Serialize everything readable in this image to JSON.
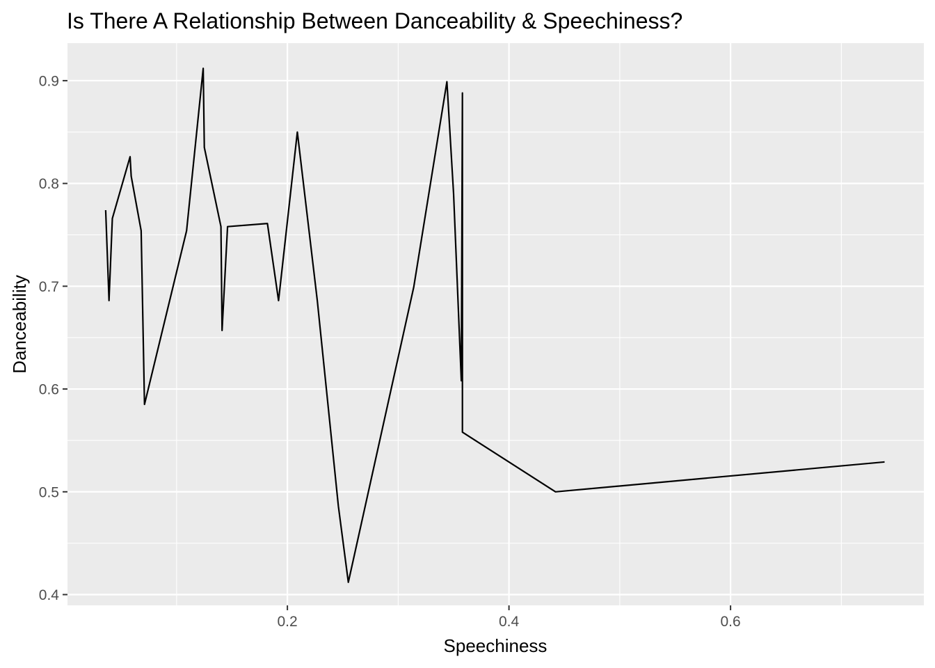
{
  "chart_data": {
    "type": "line",
    "title": "Is There A Relationship Between Danceability & Speechiness?",
    "xlabel": "Speechiness",
    "ylabel": "Danceability",
    "xlim": [
      0.0015,
      0.7745
    ],
    "ylim": [
      0.3895,
      0.9365
    ],
    "x_ticks": [
      0.2,
      0.4,
      0.6
    ],
    "x_tick_labels": [
      "0.2",
      "0.4",
      "0.6"
    ],
    "y_ticks": [
      0.4,
      0.5,
      0.6,
      0.7,
      0.8,
      0.9
    ],
    "y_tick_labels": [
      "0.4",
      "0.5",
      "0.6",
      "0.7",
      "0.8",
      "0.9"
    ],
    "grid": true,
    "background": "#EBEBEB",
    "grid_color": "#FFFFFF",
    "line_color": "#000000",
    "series": [
      {
        "x": [
          0.036,
          0.039,
          0.042,
          0.058,
          0.059,
          0.068,
          0.071,
          0.109,
          0.124,
          0.125,
          0.14,
          0.141,
          0.146,
          0.182,
          0.192,
          0.209,
          0.227,
          0.246,
          0.255,
          0.314,
          0.344,
          0.35,
          0.357,
          0.358,
          0.358,
          0.442,
          0.739
        ],
        "y": [
          0.774,
          0.686,
          0.766,
          0.826,
          0.807,
          0.754,
          0.585,
          0.754,
          0.912,
          0.835,
          0.758,
          0.657,
          0.758,
          0.761,
          0.686,
          0.85,
          0.686,
          0.486,
          0.412,
          0.699,
          0.899,
          0.79,
          0.608,
          0.888,
          0.558,
          0.5,
          0.529
        ]
      }
    ]
  }
}
